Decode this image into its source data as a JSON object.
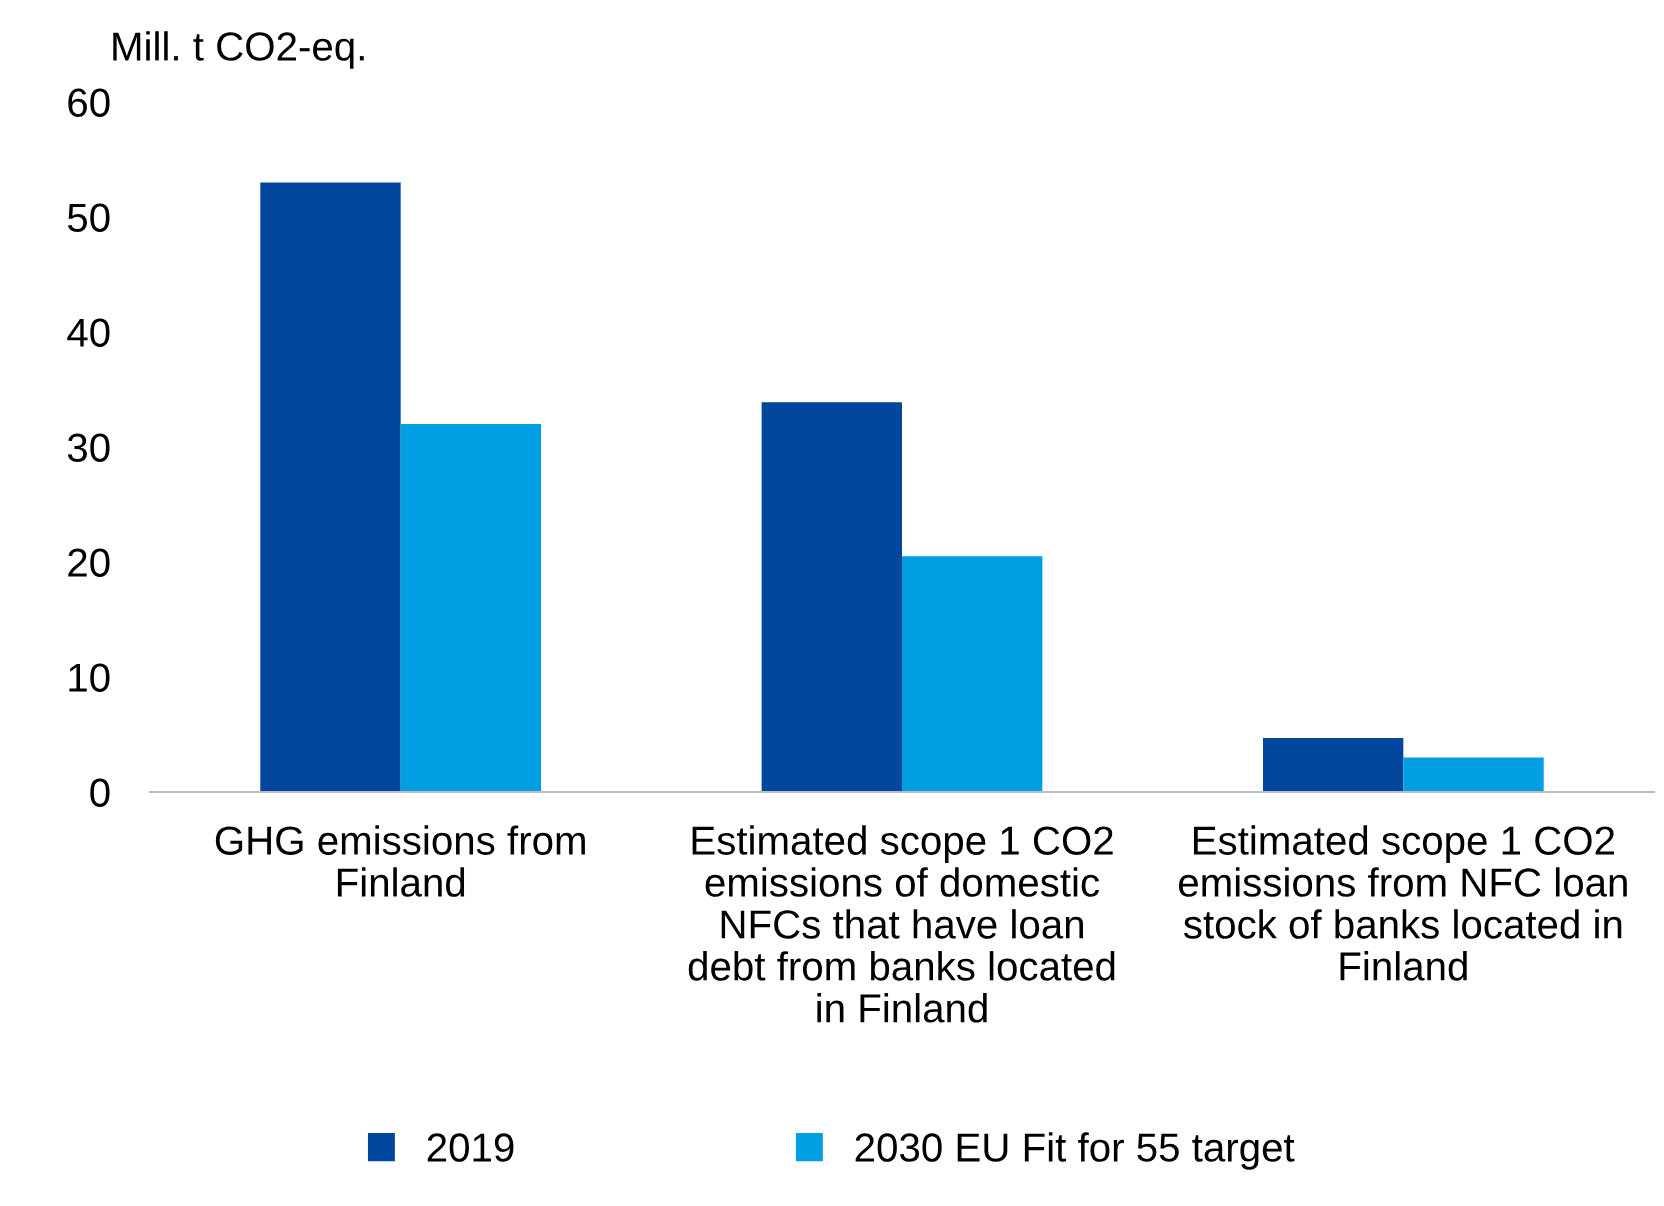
{
  "chart_data": {
    "type": "bar",
    "ylabel": "Mill. t CO2-eq.",
    "categories": [
      "GHG emissions from\nFinland",
      "Estimated scope 1 CO2\nemissions of domestic\nNFCs that have loan\ndebt from banks located\nin Finland",
      "Estimated scope 1 CO2\nemissions from NFC loan\nstock of banks located in\nFinland"
    ],
    "series": [
      {
        "name": "2019",
        "color": "#00479d",
        "values": [
          53.0,
          33.9,
          4.7
        ]
      },
      {
        "name": "2030 EU Fit for 55 target",
        "color": "#009fe3",
        "values": [
          32.0,
          20.5,
          3.0
        ]
      }
    ],
    "ylim": [
      0,
      60
    ],
    "yticks": [
      0,
      10,
      20,
      30,
      40,
      50,
      60
    ],
    "grid": false,
    "legend": "bottom"
  }
}
